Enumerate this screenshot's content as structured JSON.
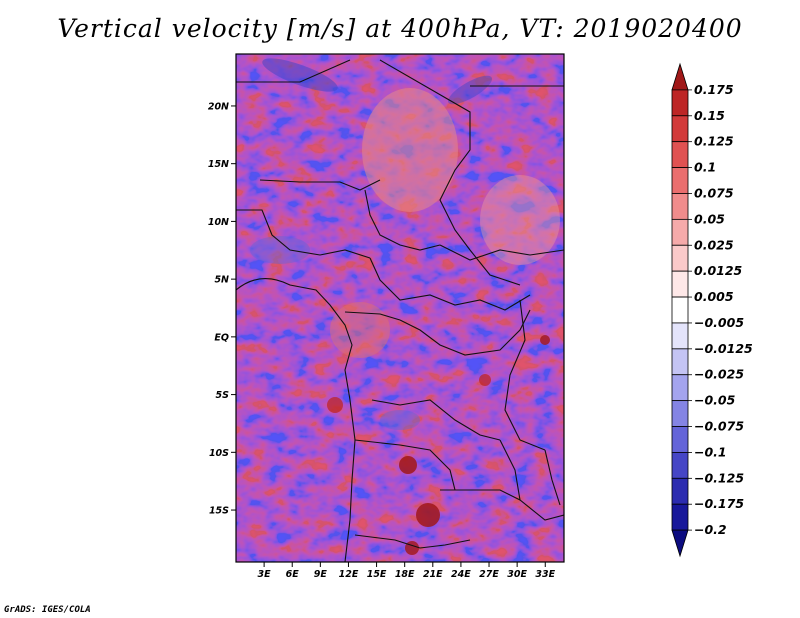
{
  "title": "Vertical velocity [m/s] at 400hPa, VT: 2019020400",
  "credit": "GrADS: IGES/COLA",
  "map": {
    "lon_range": [
      0,
      35
    ],
    "lat_range": [
      -19.5,
      24.5
    ],
    "lat_ticks": [
      {
        "value": 20,
        "label": "20N"
      },
      {
        "value": 15,
        "label": "15N"
      },
      {
        "value": 10,
        "label": "10N"
      },
      {
        "value": 5,
        "label": "5N"
      },
      {
        "value": 0,
        "label": "EQ"
      },
      {
        "value": -5,
        "label": "5S"
      },
      {
        "value": -10,
        "label": "10S"
      },
      {
        "value": -15,
        "label": "15S"
      }
    ],
    "lon_ticks": [
      {
        "value": 3,
        "label": "3E"
      },
      {
        "value": 6,
        "label": "6E"
      },
      {
        "value": 9,
        "label": "9E"
      },
      {
        "value": 12,
        "label": "12E"
      },
      {
        "value": 15,
        "label": "15E"
      },
      {
        "value": 18,
        "label": "18E"
      },
      {
        "value": 21,
        "label": "21E"
      },
      {
        "value": 24,
        "label": "24E"
      },
      {
        "value": 27,
        "label": "27E"
      },
      {
        "value": 30,
        "label": "30E"
      },
      {
        "value": 33,
        "label": "33E"
      }
    ]
  },
  "colorbar": {
    "labels": [
      "0.175",
      "0.15",
      "0.125",
      "0.1",
      "0.075",
      "0.05",
      "0.025",
      "0.0125",
      "0.005",
      "−0.005",
      "−0.0125",
      "−0.025",
      "−0.05",
      "−0.075",
      "−0.1",
      "−0.125",
      "−0.175",
      "−0.2"
    ],
    "colors": [
      "#a01818",
      "#bd2626",
      "#d23a3a",
      "#e05252",
      "#ea6e6e",
      "#f08c8c",
      "#f6aaaa",
      "#fbcaca",
      "#fee8e8",
      "#ffffff",
      "#e4e4fb",
      "#c4c4f4",
      "#a4a4ee",
      "#8484e4",
      "#6464d8",
      "#4646c6",
      "#2c2cb0",
      "#18189a",
      "#0c0c80"
    ]
  }
}
